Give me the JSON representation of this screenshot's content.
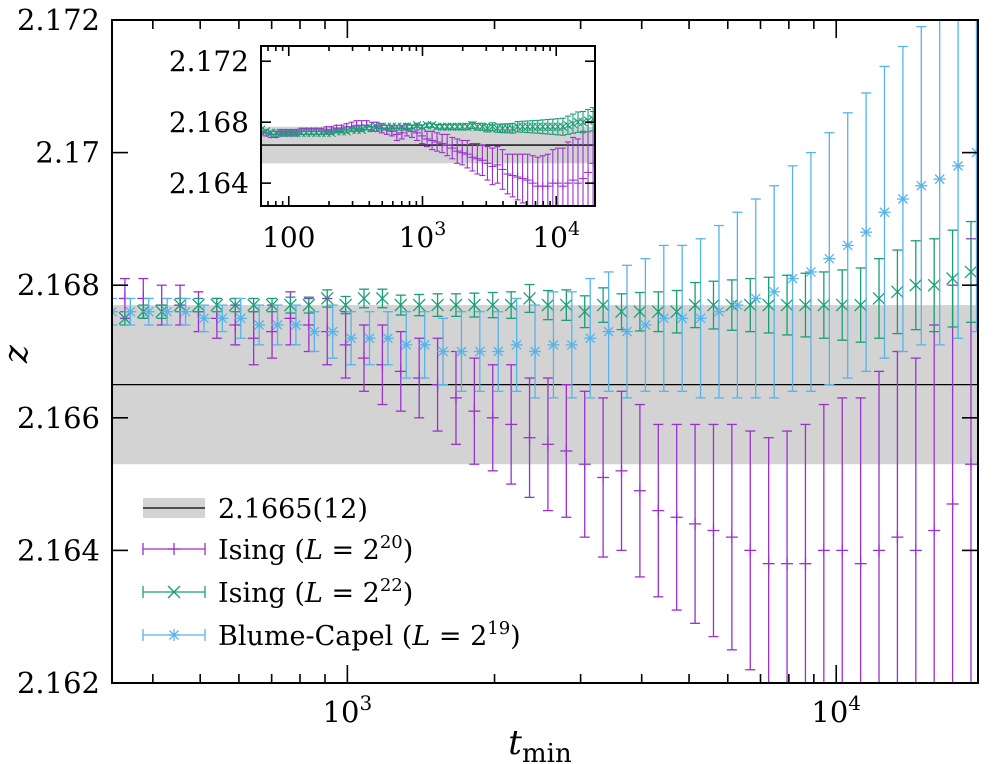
{
  "chart_data": {
    "type": "scatter",
    "main": {
      "xlabel_base": "t",
      "xlabel_sub": "min",
      "ylabel": "z",
      "xscale": "log",
      "xlim": [
        330,
        19500
      ],
      "ylim": [
        2.162,
        2.172
      ],
      "yticks": [
        {
          "value": 2.162,
          "label": "2.162"
        },
        {
          "value": 2.164,
          "label": "2.164"
        },
        {
          "value": 2.166,
          "label": "2.166"
        },
        {
          "value": 2.168,
          "label": "2.168"
        },
        {
          "value": 2.17,
          "label": "2.17"
        },
        {
          "value": 2.172,
          "label": "2.172"
        }
      ],
      "xticks": [
        {
          "value": 1000,
          "base": "10",
          "exp": "3"
        },
        {
          "value": 10000,
          "base": "10",
          "exp": "4"
        }
      ],
      "reference": {
        "value": 2.1665,
        "error": 0.0012,
        "label": "2.1665(12)"
      },
      "legend_position": "bottom-left"
    },
    "inset": {
      "xscale": "log",
      "xlim": [
        62,
        19500
      ],
      "ylim": [
        2.1625,
        2.173
      ],
      "yticks": [
        {
          "value": 2.164,
          "label": "2.164"
        },
        {
          "value": 2.168,
          "label": "2.168"
        },
        {
          "value": 2.172,
          "label": "2.172"
        }
      ],
      "xticks": [
        {
          "value": 100,
          "label": "100",
          "base": "",
          "exp": ""
        },
        {
          "value": 1000,
          "label": "",
          "base": "10",
          "exp": "3"
        },
        {
          "value": 10000,
          "label": "",
          "base": "10",
          "exp": "4"
        }
      ]
    },
    "series": [
      {
        "name_prefix": "Ising (",
        "name_math": "L",
        "name_eq": " = 2",
        "name_exp": "20",
        "name_suffix": ")",
        "color": "#9b30d0",
        "marker": "plus",
        "t_start": 62,
        "ratio": 1.0905,
        "count": 69,
        "y": [
          2.1674,
          2.1673,
          2.1672,
          2.1672,
          2.1673,
          2.1673,
          2.1673,
          2.1673,
          2.1674,
          2.1674,
          2.1674,
          2.1674,
          2.1674,
          2.1675,
          2.1675,
          2.1676,
          2.1676,
          2.1677,
          2.1677,
          2.1678,
          2.1678,
          2.1678,
          2.1677,
          2.1677,
          2.1676,
          2.1675,
          2.1674,
          2.1672,
          2.1673,
          2.1675,
          2.1674,
          2.1673,
          2.1671,
          2.1669,
          2.1668,
          2.1667,
          2.1666,
          2.1665,
          2.1663,
          2.1661,
          2.166,
          2.1659,
          2.1657,
          2.1656,
          2.1655,
          2.1653,
          2.1651,
          2.1652,
          2.1649,
          2.1646,
          2.1645,
          2.1644,
          2.1643,
          2.1642,
          2.164,
          2.1638,
          2.1638,
          2.1638,
          2.164,
          2.164,
          2.1638,
          2.164,
          2.1642,
          2.164,
          2.1643,
          2.1647,
          2.1653,
          2.1655,
          2.1658
        ],
        "err": [
          0.0002,
          0.0002,
          0.0002,
          0.0002,
          0.0002,
          0.0002,
          0.0002,
          0.0002,
          0.0002,
          0.0002,
          0.0002,
          0.0002,
          0.0002,
          0.0002,
          0.0002,
          0.0002,
          0.0002,
          0.0002,
          0.0003,
          0.0003,
          0.0003,
          0.0003,
          0.0003,
          0.0003,
          0.0003,
          0.0003,
          0.0003,
          0.0004,
          0.0004,
          0.0004,
          0.0004,
          0.0005,
          0.0005,
          0.0005,
          0.0006,
          0.0006,
          0.0006,
          0.0007,
          0.0007,
          0.0008,
          0.0008,
          0.0009,
          0.0009,
          0.001,
          0.001,
          0.0011,
          0.0012,
          0.0012,
          0.0013,
          0.0013,
          0.0014,
          0.0015,
          0.0016,
          0.0017,
          0.0018,
          0.0019,
          0.002,
          0.0021,
          0.0022,
          0.0023,
          0.0025,
          0.0027,
          0.0028,
          0.0029,
          0.0031,
          0.0033,
          0.0034,
          0.0036,
          0.0038
        ]
      },
      {
        "name_prefix": "Ising (",
        "name_math": "L",
        "name_eq": " = 2",
        "name_exp": "22",
        "name_suffix": ")",
        "color": "#1a9e77",
        "marker": "x",
        "t_start": 62,
        "ratio": 1.0905,
        "count": 69,
        "y": [
          2.1675,
          2.1674,
          2.1673,
          2.1673,
          2.1673,
          2.1673,
          2.1673,
          2.1673,
          2.1673,
          2.1673,
          2.1673,
          2.1673,
          2.1673,
          2.1673,
          2.1673,
          2.1674,
          2.1674,
          2.1674,
          2.1675,
          2.1675,
          2.1675,
          2.1676,
          2.1676,
          2.1677,
          2.1677,
          2.1677,
          2.1677,
          2.1677,
          2.1677,
          2.1677,
          2.1677,
          2.1678,
          2.1677,
          2.1678,
          2.1678,
          2.1677,
          2.1677,
          2.1677,
          2.1677,
          2.1677,
          2.1677,
          2.1677,
          2.1678,
          2.1677,
          2.1677,
          2.1676,
          2.1677,
          2.1676,
          2.1676,
          2.1676,
          2.1676,
          2.1677,
          2.1677,
          2.1677,
          2.1677,
          2.1677,
          2.1677,
          2.1677,
          2.1677,
          2.1677,
          2.1677,
          2.1678,
          2.1679,
          2.168,
          2.168,
          2.1681,
          2.1682,
          2.1682,
          2.1682
        ],
        "err": [
          0.0001,
          0.0001,
          0.0001,
          0.0001,
          0.0001,
          0.0001,
          0.0001,
          0.0001,
          0.0001,
          0.0001,
          0.0001,
          0.0001,
          0.0001,
          0.0001,
          0.0001,
          0.0001,
          0.0001,
          0.0001,
          0.0001,
          0.0001,
          0.0001,
          0.0001,
          0.0001,
          0.0001,
          0.0001,
          0.0001,
          0.0001,
          0.0001,
          0.0001,
          0.00012,
          0.00012,
          0.00013,
          0.00013,
          0.00014,
          0.00014,
          0.00015,
          0.00016,
          0.00017,
          0.00017,
          0.00018,
          0.00019,
          0.0002,
          0.00021,
          0.00022,
          0.00023,
          0.00024,
          0.00026,
          0.00027,
          0.00029,
          0.0003,
          0.00032,
          0.00034,
          0.00036,
          0.00038,
          0.0004,
          0.00042,
          0.00045,
          0.00048,
          0.0005,
          0.00053,
          0.00056,
          0.0006,
          0.00063,
          0.00067,
          0.0007,
          0.00073,
          0.00076,
          0.0008,
          0.00085
        ]
      },
      {
        "name_prefix": "Blume-Capel (",
        "name_math": "L",
        "name_eq": " = 2",
        "name_exp": "19",
        "name_suffix": ")",
        "color": "#56b4e9",
        "marker": "star",
        "t_start": 330,
        "ratio": 1.0905,
        "count": 50,
        "y": [
          2.1676,
          2.1676,
          2.1676,
          2.1676,
          2.1676,
          2.1675,
          2.1675,
          2.1675,
          2.1674,
          2.1674,
          2.1674,
          2.1673,
          2.1673,
          2.1672,
          2.1672,
          2.1672,
          2.1671,
          2.1671,
          2.167,
          2.167,
          2.167,
          2.167,
          2.1671,
          2.167,
          2.1671,
          2.1671,
          2.1672,
          2.1673,
          2.1673,
          2.1674,
          2.1675,
          2.1675,
          2.1675,
          2.1676,
          2.1677,
          2.1678,
          2.1679,
          2.1681,
          2.1682,
          2.1684,
          2.1686,
          2.1688,
          2.1691,
          2.1693,
          2.1695,
          2.1696,
          2.1698,
          2.17,
          2.1703,
          2.1706
        ],
        "err": [
          0.0002,
          0.0002,
          0.0002,
          0.0002,
          0.0002,
          0.0002,
          0.0002,
          0.0003,
          0.0003,
          0.0003,
          0.0003,
          0.0003,
          0.0004,
          0.0004,
          0.0004,
          0.0004,
          0.0005,
          0.0005,
          0.0005,
          0.0006,
          0.0006,
          0.0006,
          0.0007,
          0.0007,
          0.0008,
          0.0008,
          0.0009,
          0.0009,
          0.001,
          0.001,
          0.0011,
          0.0011,
          0.0012,
          0.0013,
          0.0014,
          0.0015,
          0.0016,
          0.0017,
          0.0018,
          0.0019,
          0.002,
          0.0021,
          0.0022,
          0.0023,
          0.0024,
          0.0025,
          0.0026,
          0.0027,
          0.0028,
          0.0029
        ]
      }
    ],
    "reference_color": "#d3d3d3"
  }
}
